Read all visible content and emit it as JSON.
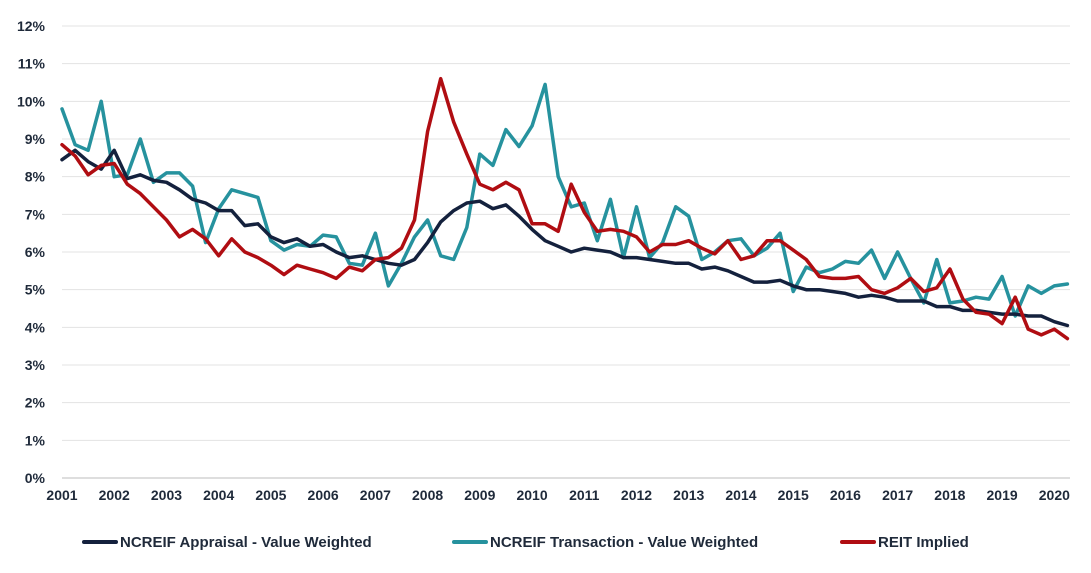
{
  "chart_data": {
    "type": "line",
    "title": "",
    "xlabel": "",
    "ylabel": "",
    "x_ticks": [
      "2001",
      "2002",
      "2003",
      "2004",
      "2005",
      "2006",
      "2007",
      "2008",
      "2009",
      "2010",
      "2011",
      "2012",
      "2013",
      "2014",
      "2015",
      "2016",
      "2017",
      "2018",
      "2019",
      "2020"
    ],
    "y_ticks": [
      "0%",
      "1%",
      "2%",
      "3%",
      "4%",
      "5%",
      "6%",
      "7%",
      "8%",
      "9%",
      "10%",
      "11%",
      "12%"
    ],
    "xlim": [
      2001.0,
      2020.3
    ],
    "ylim": [
      0,
      12
    ],
    "grid": true,
    "legend": "bottom",
    "series": [
      {
        "name": "NCREIF Appraisal - Value Weighted",
        "color": "#14213d",
        "points": [
          [
            2001.0,
            8.45
          ],
          [
            2001.25,
            8.7
          ],
          [
            2001.5,
            8.4
          ],
          [
            2001.75,
            8.2
          ],
          [
            2002.0,
            8.7
          ],
          [
            2002.25,
            7.95
          ],
          [
            2002.5,
            8.05
          ],
          [
            2002.75,
            7.9
          ],
          [
            2003.0,
            7.85
          ],
          [
            2003.25,
            7.65
          ],
          [
            2003.5,
            7.4
          ],
          [
            2003.75,
            7.3
          ],
          [
            2004.0,
            7.1
          ],
          [
            2004.25,
            7.1
          ],
          [
            2004.5,
            6.7
          ],
          [
            2004.75,
            6.75
          ],
          [
            2005.0,
            6.4
          ],
          [
            2005.25,
            6.25
          ],
          [
            2005.5,
            6.35
          ],
          [
            2005.75,
            6.15
          ],
          [
            2006.0,
            6.2
          ],
          [
            2006.25,
            6.0
          ],
          [
            2006.5,
            5.85
          ],
          [
            2006.75,
            5.9
          ],
          [
            2007.0,
            5.8
          ],
          [
            2007.25,
            5.7
          ],
          [
            2007.5,
            5.65
          ],
          [
            2007.75,
            5.8
          ],
          [
            2008.0,
            6.25
          ],
          [
            2008.25,
            6.8
          ],
          [
            2008.5,
            7.1
          ],
          [
            2008.75,
            7.3
          ],
          [
            2009.0,
            7.35
          ],
          [
            2009.25,
            7.15
          ],
          [
            2009.5,
            7.25
          ],
          [
            2009.75,
            6.95
          ],
          [
            2010.0,
            6.6
          ],
          [
            2010.25,
            6.3
          ],
          [
            2010.5,
            6.15
          ],
          [
            2010.75,
            6.0
          ],
          [
            2011.0,
            6.1
          ],
          [
            2011.25,
            6.05
          ],
          [
            2011.5,
            6.0
          ],
          [
            2011.75,
            5.85
          ],
          [
            2012.0,
            5.85
          ],
          [
            2012.25,
            5.8
          ],
          [
            2012.5,
            5.75
          ],
          [
            2012.75,
            5.7
          ],
          [
            2013.0,
            5.7
          ],
          [
            2013.25,
            5.55
          ],
          [
            2013.5,
            5.6
          ],
          [
            2013.75,
            5.5
          ],
          [
            2014.0,
            5.35
          ],
          [
            2014.25,
            5.2
          ],
          [
            2014.5,
            5.2
          ],
          [
            2014.75,
            5.25
          ],
          [
            2015.0,
            5.1
          ],
          [
            2015.25,
            5.0
          ],
          [
            2015.5,
            5.0
          ],
          [
            2015.75,
            4.95
          ],
          [
            2016.0,
            4.9
          ],
          [
            2016.25,
            4.8
          ],
          [
            2016.5,
            4.85
          ],
          [
            2016.75,
            4.8
          ],
          [
            2017.0,
            4.7
          ],
          [
            2017.25,
            4.7
          ],
          [
            2017.5,
            4.7
          ],
          [
            2017.75,
            4.55
          ],
          [
            2018.0,
            4.55
          ],
          [
            2018.25,
            4.45
          ],
          [
            2018.5,
            4.45
          ],
          [
            2018.75,
            4.4
          ],
          [
            2019.0,
            4.35
          ],
          [
            2019.25,
            4.35
          ],
          [
            2019.5,
            4.3
          ],
          [
            2019.75,
            4.3
          ],
          [
            2020.0,
            4.15
          ],
          [
            2020.25,
            4.05
          ]
        ]
      },
      {
        "name": "NCREIF Transaction - Value Weighted",
        "color": "#26929e",
        "points": [
          [
            2001.0,
            9.8
          ],
          [
            2001.25,
            8.85
          ],
          [
            2001.5,
            8.7
          ],
          [
            2001.75,
            10.0
          ],
          [
            2002.0,
            8.0
          ],
          [
            2002.25,
            8.05
          ],
          [
            2002.5,
            9.0
          ],
          [
            2002.75,
            7.85
          ],
          [
            2003.0,
            8.1
          ],
          [
            2003.25,
            8.1
          ],
          [
            2003.5,
            7.75
          ],
          [
            2003.75,
            6.25
          ],
          [
            2004.0,
            7.15
          ],
          [
            2004.25,
            7.65
          ],
          [
            2004.5,
            7.55
          ],
          [
            2004.75,
            7.45
          ],
          [
            2005.0,
            6.3
          ],
          [
            2005.25,
            6.05
          ],
          [
            2005.5,
            6.2
          ],
          [
            2005.75,
            6.15
          ],
          [
            2006.0,
            6.45
          ],
          [
            2006.25,
            6.4
          ],
          [
            2006.5,
            5.7
          ],
          [
            2006.75,
            5.65
          ],
          [
            2007.0,
            6.5
          ],
          [
            2007.25,
            5.1
          ],
          [
            2007.5,
            5.7
          ],
          [
            2007.75,
            6.4
          ],
          [
            2008.0,
            6.85
          ],
          [
            2008.25,
            5.9
          ],
          [
            2008.5,
            5.8
          ],
          [
            2008.75,
            6.65
          ],
          [
            2009.0,
            8.6
          ],
          [
            2009.25,
            8.3
          ],
          [
            2009.5,
            9.25
          ],
          [
            2009.75,
            8.8
          ],
          [
            2010.0,
            9.35
          ],
          [
            2010.25,
            10.45
          ],
          [
            2010.5,
            8.0
          ],
          [
            2010.75,
            7.2
          ],
          [
            2011.0,
            7.3
          ],
          [
            2011.25,
            6.3
          ],
          [
            2011.5,
            7.4
          ],
          [
            2011.75,
            5.85
          ],
          [
            2012.0,
            7.2
          ],
          [
            2012.25,
            5.85
          ],
          [
            2012.5,
            6.25
          ],
          [
            2012.75,
            7.2
          ],
          [
            2013.0,
            6.95
          ],
          [
            2013.25,
            5.8
          ],
          [
            2013.5,
            6.0
          ],
          [
            2013.75,
            6.3
          ],
          [
            2014.0,
            6.35
          ],
          [
            2014.25,
            5.9
          ],
          [
            2014.5,
            6.1
          ],
          [
            2014.75,
            6.5
          ],
          [
            2015.0,
            4.95
          ],
          [
            2015.25,
            5.6
          ],
          [
            2015.5,
            5.45
          ],
          [
            2015.75,
            5.55
          ],
          [
            2016.0,
            5.75
          ],
          [
            2016.25,
            5.7
          ],
          [
            2016.5,
            6.05
          ],
          [
            2016.75,
            5.3
          ],
          [
            2017.0,
            6.0
          ],
          [
            2017.25,
            5.3
          ],
          [
            2017.5,
            4.65
          ],
          [
            2017.75,
            5.8
          ],
          [
            2018.0,
            4.65
          ],
          [
            2018.25,
            4.7
          ],
          [
            2018.5,
            4.8
          ],
          [
            2018.75,
            4.75
          ],
          [
            2019.0,
            5.35
          ],
          [
            2019.25,
            4.3
          ],
          [
            2019.5,
            5.1
          ],
          [
            2019.75,
            4.9
          ],
          [
            2020.0,
            5.1
          ],
          [
            2020.25,
            5.15
          ]
        ]
      },
      {
        "name": "REIT Implied",
        "color": "#b00d12",
        "points": [
          [
            2001.0,
            8.85
          ],
          [
            2001.25,
            8.55
          ],
          [
            2001.5,
            8.05
          ],
          [
            2001.75,
            8.3
          ],
          [
            2002.0,
            8.35
          ],
          [
            2002.25,
            7.8
          ],
          [
            2002.5,
            7.55
          ],
          [
            2002.75,
            7.2
          ],
          [
            2003.0,
            6.85
          ],
          [
            2003.25,
            6.4
          ],
          [
            2003.5,
            6.6
          ],
          [
            2003.75,
            6.35
          ],
          [
            2004.0,
            5.9
          ],
          [
            2004.25,
            6.35
          ],
          [
            2004.5,
            6.0
          ],
          [
            2004.75,
            5.85
          ],
          [
            2005.0,
            5.65
          ],
          [
            2005.25,
            5.4
          ],
          [
            2005.5,
            5.65
          ],
          [
            2005.75,
            5.55
          ],
          [
            2006.0,
            5.45
          ],
          [
            2006.25,
            5.3
          ],
          [
            2006.5,
            5.6
          ],
          [
            2006.75,
            5.5
          ],
          [
            2007.0,
            5.8
          ],
          [
            2007.25,
            5.85
          ],
          [
            2007.5,
            6.1
          ],
          [
            2007.75,
            6.85
          ],
          [
            2008.0,
            9.2
          ],
          [
            2008.25,
            10.6
          ],
          [
            2008.5,
            9.45
          ],
          [
            2008.75,
            8.6
          ],
          [
            2009.0,
            7.8
          ],
          [
            2009.25,
            7.65
          ],
          [
            2009.5,
            7.85
          ],
          [
            2009.75,
            7.65
          ],
          [
            2010.0,
            6.75
          ],
          [
            2010.25,
            6.75
          ],
          [
            2010.5,
            6.55
          ],
          [
            2010.75,
            7.8
          ],
          [
            2011.0,
            7.05
          ],
          [
            2011.25,
            6.55
          ],
          [
            2011.5,
            6.6
          ],
          [
            2011.75,
            6.55
          ],
          [
            2012.0,
            6.4
          ],
          [
            2012.25,
            6.0
          ],
          [
            2012.5,
            6.2
          ],
          [
            2012.75,
            6.2
          ],
          [
            2013.0,
            6.3
          ],
          [
            2013.25,
            6.1
          ],
          [
            2013.5,
            5.95
          ],
          [
            2013.75,
            6.3
          ],
          [
            2014.0,
            5.8
          ],
          [
            2014.25,
            5.9
          ],
          [
            2014.5,
            6.3
          ],
          [
            2014.75,
            6.3
          ],
          [
            2015.0,
            6.05
          ],
          [
            2015.25,
            5.8
          ],
          [
            2015.5,
            5.35
          ],
          [
            2015.75,
            5.3
          ],
          [
            2016.0,
            5.3
          ],
          [
            2016.25,
            5.35
          ],
          [
            2016.5,
            5.0
          ],
          [
            2016.75,
            4.9
          ],
          [
            2017.0,
            5.05
          ],
          [
            2017.25,
            5.3
          ],
          [
            2017.5,
            4.95
          ],
          [
            2017.75,
            5.05
          ],
          [
            2018.0,
            5.55
          ],
          [
            2018.25,
            4.75
          ],
          [
            2018.5,
            4.4
          ],
          [
            2018.75,
            4.35
          ],
          [
            2019.0,
            4.1
          ],
          [
            2019.25,
            4.8
          ],
          [
            2019.5,
            3.95
          ],
          [
            2019.75,
            3.8
          ],
          [
            2020.0,
            3.95
          ],
          [
            2020.25,
            3.7
          ]
        ]
      }
    ]
  }
}
